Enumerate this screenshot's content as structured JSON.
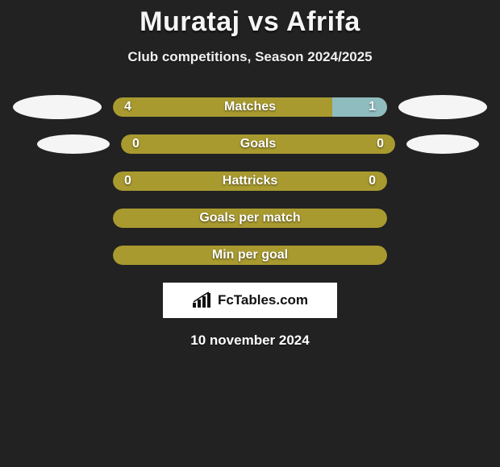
{
  "colors": {
    "background": "#222222",
    "bar_main": "#a89a2f",
    "bar_alt": "#8fbcbf",
    "ellipse": "#f5f5f5",
    "text": "#ffffff",
    "logo_bg": "#ffffff",
    "logo_text": "#111111"
  },
  "header": {
    "title": "Murataj vs Afrifa",
    "subtitle": "Club competitions, Season 2024/2025"
  },
  "stats": [
    {
      "label": "Matches",
      "left_value": "4",
      "right_value": "1",
      "left_pct": 80,
      "right_pct": 20,
      "left_color": "#a89a2f",
      "right_color": "#8fbcbf",
      "show_left_ellipse": true,
      "show_right_ellipse": true
    },
    {
      "label": "Goals",
      "left_value": "0",
      "right_value": "0",
      "left_pct": 100,
      "right_pct": 0,
      "left_color": "#a89a2f",
      "right_color": "#8fbcbf",
      "show_left_ellipse": true,
      "show_right_ellipse": true
    },
    {
      "label": "Hattricks",
      "left_value": "0",
      "right_value": "0",
      "left_pct": 100,
      "right_pct": 0,
      "left_color": "#a89a2f",
      "right_color": "#8fbcbf",
      "show_left_ellipse": false,
      "show_right_ellipse": false
    },
    {
      "label": "Goals per match",
      "left_value": "",
      "right_value": "",
      "left_pct": 100,
      "right_pct": 0,
      "left_color": "#a89a2f",
      "right_color": "#8fbcbf",
      "show_left_ellipse": false,
      "show_right_ellipse": false
    },
    {
      "label": "Min per goal",
      "left_value": "",
      "right_value": "",
      "left_pct": 100,
      "right_pct": 0,
      "left_color": "#a89a2f",
      "right_color": "#8fbcbf",
      "show_left_ellipse": false,
      "show_right_ellipse": false
    }
  ],
  "footer": {
    "logo_text": "FcTables.com",
    "date": "10 november 2024"
  }
}
